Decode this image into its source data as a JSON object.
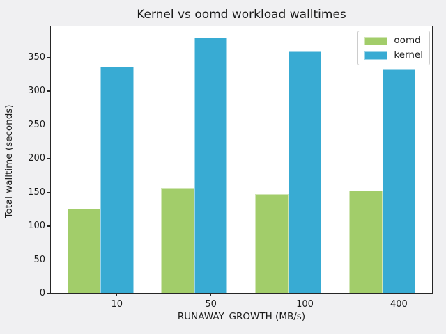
{
  "chart_data": {
    "type": "bar",
    "title": "Kernel vs oomd workload walltimes",
    "xlabel": "RUNAWAY_GROWTH (MB/s)",
    "ylabel": "Total walltime (seconds)",
    "categories": [
      "10",
      "50",
      "100",
      "400"
    ],
    "series": [
      {
        "name": "oomd",
        "color": "#a2cd6a",
        "values": [
          125,
          156,
          146,
          152
        ]
      },
      {
        "name": "kernel",
        "color": "#38abd3",
        "values": [
          335,
          378,
          358,
          332
        ]
      }
    ],
    "yticks": [
      0,
      50,
      100,
      150,
      200,
      250,
      300,
      350
    ],
    "ylim": [
      0,
      397
    ],
    "grid": false,
    "legend_position": "upper right",
    "legend_entries": [
      "oomd",
      "kernel"
    ]
  },
  "colors": {
    "figure_bg": "#f0f0f2",
    "plot_bg": "#ffffff",
    "spine": "#262626",
    "text": "#1a1a1a",
    "legend_border": "#cccccc",
    "oomd_green": "#a2cd6a",
    "kernel_blue": "#38abd3"
  }
}
